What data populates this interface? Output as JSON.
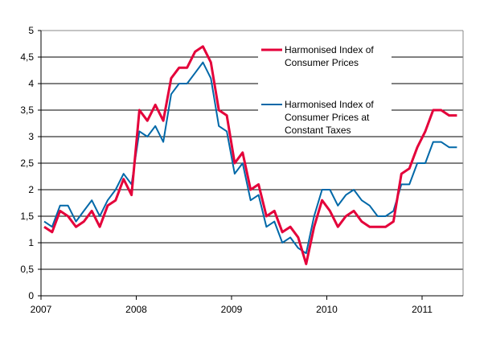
{
  "chart_data": {
    "type": "line",
    "title": "",
    "xlabel": "",
    "ylabel": "",
    "ylim": [
      0,
      5
    ],
    "yticks": [
      "0",
      "0,5",
      "1",
      "1,5",
      "2",
      "2,5",
      "3",
      "3,5",
      "4",
      "4,5",
      "5"
    ],
    "xtick_labels": [
      "2007",
      "2008",
      "2009",
      "2010",
      "2011"
    ],
    "x_start": "2007-01",
    "x_frequency": "monthly",
    "grid": "horizontal",
    "legend_placement": "top-center",
    "series": [
      {
        "name": "Harmonised Index of Consumer Prices",
        "name_lines": [
          "Harmonised Index of",
          "Consumer Prices"
        ],
        "color": "#e4003a",
        "values": [
          1.3,
          1.2,
          1.6,
          1.5,
          1.3,
          1.4,
          1.6,
          1.3,
          1.7,
          1.8,
          2.2,
          1.9,
          3.5,
          3.3,
          3.6,
          3.3,
          4.1,
          4.3,
          4.3,
          4.6,
          4.7,
          4.4,
          3.5,
          3.4,
          2.5,
          2.7,
          2.0,
          2.1,
          1.5,
          1.6,
          1.2,
          1.3,
          1.1,
          0.6,
          1.3,
          1.8,
          1.6,
          1.3,
          1.5,
          1.6,
          1.4,
          1.3,
          1.3,
          1.3,
          1.4,
          2.3,
          2.4,
          2.8,
          3.1,
          3.5,
          3.5,
          3.4,
          3.4
        ]
      },
      {
        "name": "Harmonised Index of Consumer Prices at Constant Taxes",
        "name_lines": [
          "Harmonised Index of",
          "Consumer Prices at",
          "Constant Taxes"
        ],
        "color": "#0068a8",
        "values": [
          1.4,
          1.3,
          1.7,
          1.7,
          1.4,
          1.6,
          1.8,
          1.5,
          1.8,
          2.0,
          2.3,
          2.1,
          3.1,
          3.0,
          3.2,
          2.9,
          3.8,
          4.0,
          4.0,
          4.2,
          4.4,
          4.1,
          3.2,
          3.1,
          2.3,
          2.5,
          1.8,
          1.9,
          1.3,
          1.4,
          1.0,
          1.1,
          0.9,
          0.8,
          1.5,
          2.0,
          2.0,
          1.7,
          1.9,
          2.0,
          1.8,
          1.7,
          1.5,
          1.5,
          1.6,
          2.1,
          2.1,
          2.5,
          2.5,
          2.9,
          2.9,
          2.8,
          2.8
        ]
      }
    ]
  }
}
